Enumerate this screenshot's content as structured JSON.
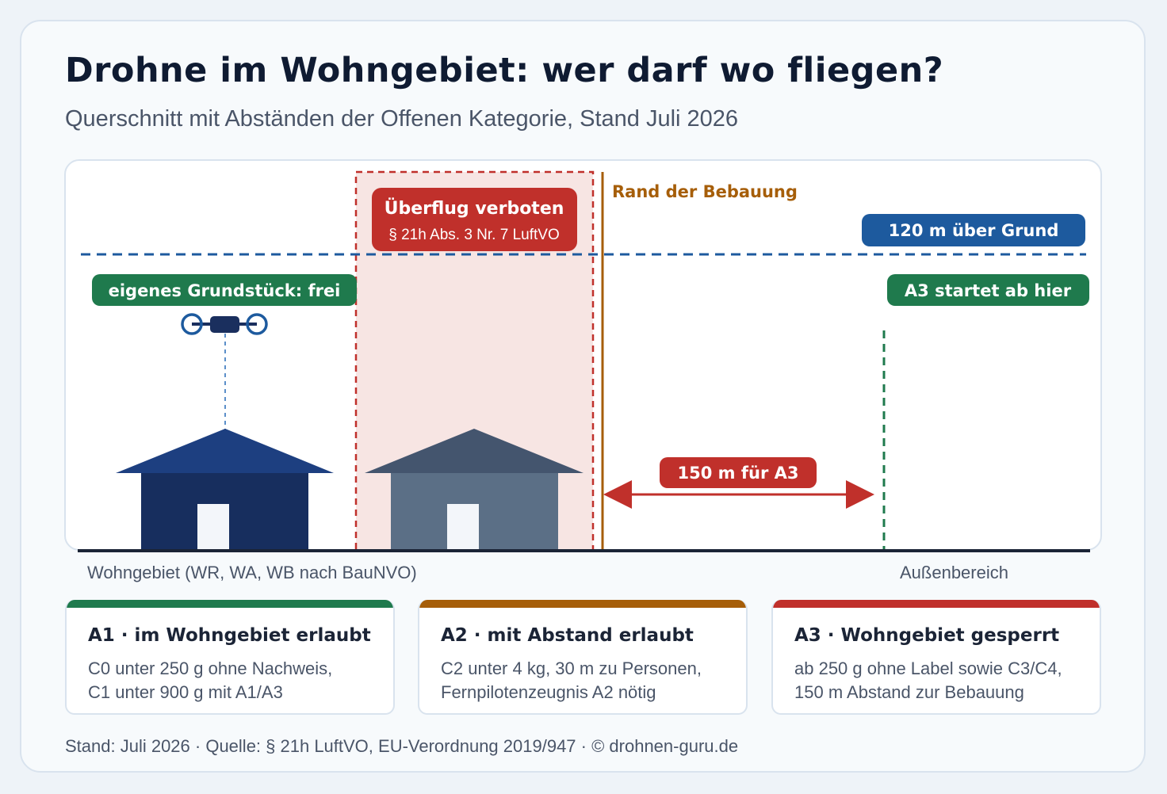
{
  "title": "Drohne im Wohngebiet: wer darf wo fliegen?",
  "subtitle": "Querschnitt mit Abständen der Offenen Kategorie, Stand Juli 2026",
  "colors": {
    "green": "#1f7a4d",
    "orange": "#a65e09",
    "red": "#c0302b",
    "blue": "#1d5a9e",
    "navy": "#1a2f5e",
    "gray_house": "#5b6f86",
    "gray_roof": "#44556e",
    "forbidden_fill": "#f7e5e3"
  },
  "diagram": {
    "forbidden_title": "Überflug verboten",
    "forbidden_sub": "§ 21h Abs. 3 Nr. 7 LuftVO",
    "edge_label": "Rand der Bebauung",
    "altitude_label": "120 m über Grund",
    "a3_start_label": "A3 startet ab hier",
    "own_property_label": "eigenes Grundstück: frei",
    "distance_label": "150 m für A3",
    "drone_icon": "drone-icon",
    "left_zone_caption": "Wohngebiet (WR, WA, WB nach BauNVO)",
    "right_zone_caption": "Außenbereich"
  },
  "cards": [
    {
      "color": "#1f7a4d",
      "heading": "A1 · im Wohngebiet erlaubt",
      "lines": [
        "C0 unter 250 g ohne Nachweis,",
        "C1 unter 900 g mit A1/A3"
      ]
    },
    {
      "color": "#a65e09",
      "heading": "A2 · mit Abstand erlaubt",
      "lines": [
        "C2 unter 4 kg, 30 m zu Personen,",
        "Fernpilotenzeugnis A2 nötig"
      ]
    },
    {
      "color": "#c0302b",
      "heading": "A3 · Wohngebiet gesperrt",
      "lines": [
        "ab 250 g ohne Label sowie C3/C4,",
        "150 m Abstand zur Bebauung"
      ]
    }
  ],
  "footer": "Stand: Juli 2026 · Quelle: § 21h LuftVO, EU-Verordnung 2019/947 · © drohnen-guru.de"
}
